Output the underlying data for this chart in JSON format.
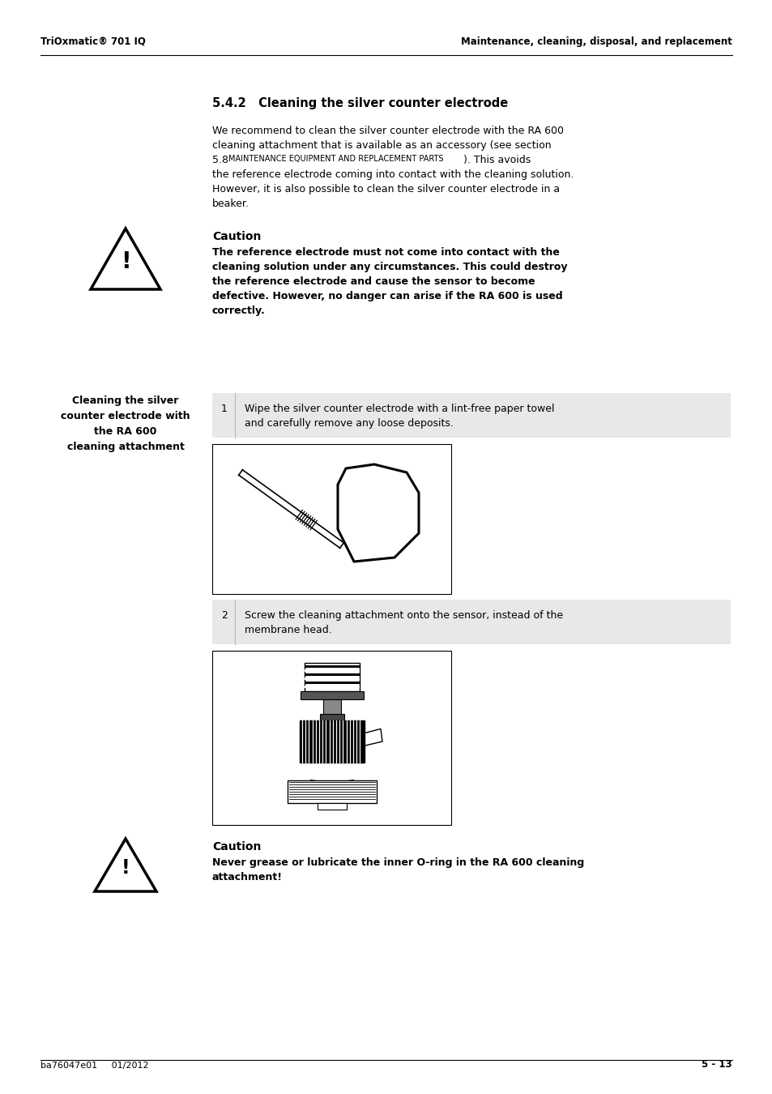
{
  "bg_color": "#ffffff",
  "header_left": "TriOxmatic® 701 IQ",
  "header_right": "Maintenance, cleaning, disposal, and replacement",
  "footer_left": "ba76047e01     01/2012",
  "footer_right": "5 - 13",
  "section_title": "5.4.2   Cleaning the silver counter electrode",
  "body_line1": "We recommend to clean the silver counter electrode with the RA 600",
  "body_line2": "cleaning attachment that is available as an accessory (see section",
  "body_line3a": "5.8 ",
  "body_line3b": "MAINTENANCE EQUIPMENT AND REPLACEMENT PARTS",
  "body_line3c": "). This avoids",
  "body_line4": "the reference electrode coming into contact with the cleaning solution.",
  "body_line5": "However, it is also possible to clean the silver counter electrode in a",
  "body_line6": "beaker.",
  "caution1_title": "Caution",
  "caution1_lines": [
    "The reference electrode must not come into contact with the",
    "cleaning solution under any circumstances. This could destroy",
    "the reference electrode and cause the sensor to become",
    "defective. However, no danger can arise if the RA 600 is used",
    "correctly."
  ],
  "left_label_lines": [
    "Cleaning the silver",
    "counter electrode with",
    "the RA 600",
    "cleaning attachment"
  ],
  "step1_num": "1",
  "step1_lines": [
    "Wipe the silver counter electrode with a lint-free paper towel",
    "and carefully remove any loose deposits."
  ],
  "step2_num": "2",
  "step2_lines": [
    "Screw the cleaning attachment onto the sensor, instead of the",
    "membrane head."
  ],
  "caution2_title": "Caution",
  "caution2_lines": [
    "Never grease or lubricate the inner O-ring in the RA 600 cleaning",
    "attachment!"
  ]
}
